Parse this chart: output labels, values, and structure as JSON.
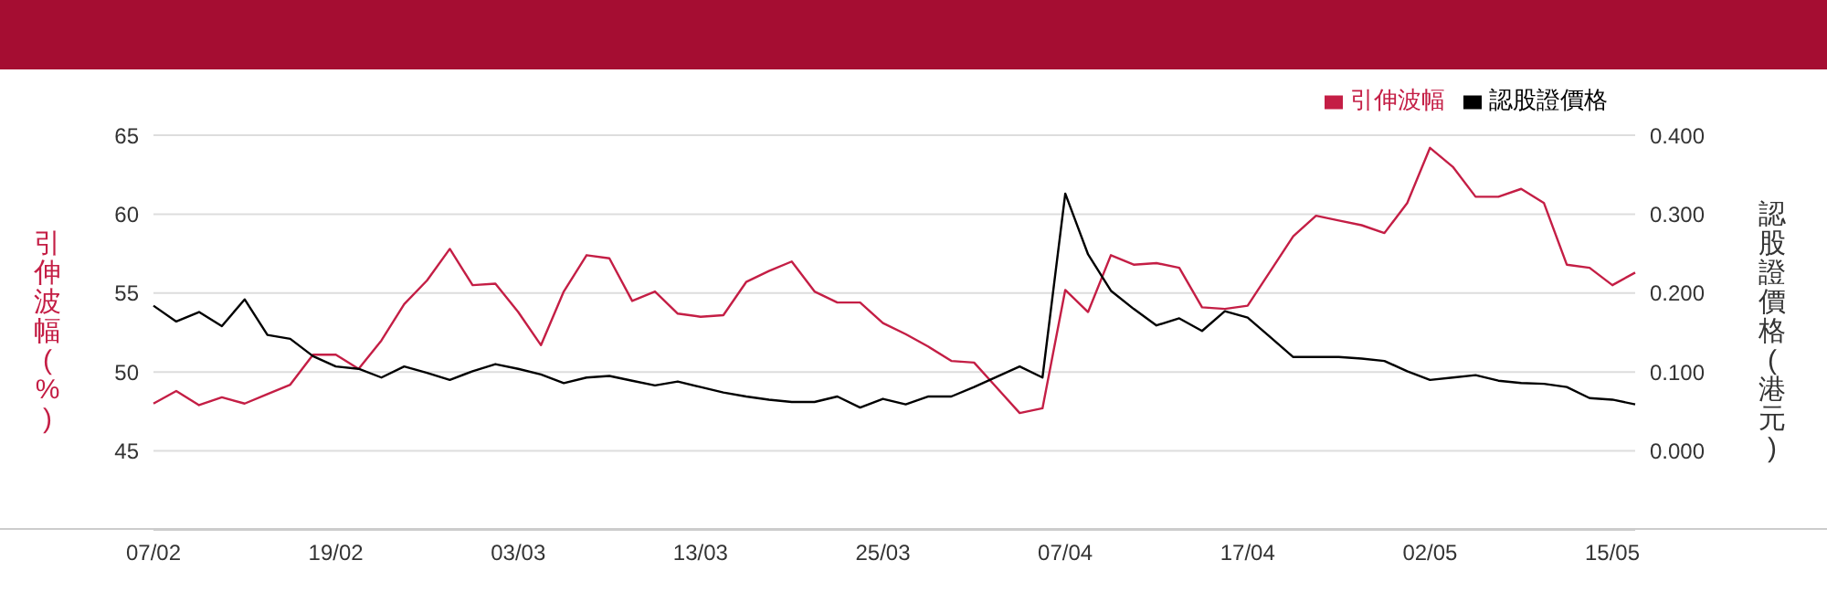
{
  "chart_data": {
    "type": "line",
    "ylabel": "引伸波幅(%)",
    "y2label": "認股證價格(港元)",
    "categories": [
      "07/02",
      null,
      null,
      null,
      null,
      null,
      null,
      null,
      "19/02",
      null,
      null,
      null,
      null,
      null,
      null,
      null,
      "03/03",
      null,
      null,
      null,
      null,
      null,
      null,
      null,
      "13/03",
      null,
      null,
      null,
      null,
      null,
      null,
      null,
      "25/03",
      null,
      null,
      null,
      null,
      null,
      null,
      null,
      "07/04",
      null,
      null,
      null,
      null,
      null,
      null,
      null,
      "17/04",
      null,
      null,
      null,
      null,
      null,
      null,
      null,
      "02/05",
      null,
      null,
      null,
      null,
      null,
      null,
      null,
      "15/05",
      null
    ],
    "series": [
      {
        "name": "引伸波幅",
        "color": "#c41e45",
        "values": [
          48.0,
          48.8,
          47.9,
          48.4,
          48.0,
          48.6,
          49.2,
          51.1,
          51.1,
          50.2,
          52.0,
          54.3,
          55.8,
          57.8,
          55.5,
          55.6,
          53.8,
          51.7,
          55.1,
          57.4,
          57.2,
          54.5,
          55.1,
          53.7,
          53.5,
          53.6,
          55.7,
          56.4,
          57.0,
          55.1,
          54.4,
          54.4,
          53.1,
          52.4,
          51.6,
          50.7,
          50.6,
          49.0,
          47.4,
          47.7,
          55.2,
          53.8,
          57.4,
          56.8,
          56.9,
          56.6,
          54.1,
          54.0,
          54.2,
          56.4,
          58.6,
          59.9,
          59.6,
          59.3,
          58.8,
          60.7,
          64.2,
          63.0,
          61.1,
          61.1,
          61.6,
          60.7,
          56.8,
          56.6,
          55.5,
          56.3
        ]
      },
      {
        "name": "認股證價格",
        "color": "#000000",
        "axis": "y2",
        "values": [
          0.184,
          0.164,
          0.176,
          0.158,
          0.192,
          0.147,
          0.142,
          0.12,
          0.107,
          0.104,
          0.093,
          0.107,
          0.099,
          0.09,
          0.101,
          0.11,
          0.104,
          0.097,
          0.086,
          0.093,
          0.095,
          0.089,
          0.083,
          0.088,
          0.081,
          0.074,
          0.069,
          0.065,
          0.062,
          0.062,
          0.069,
          0.055,
          0.066,
          0.059,
          0.069,
          0.069,
          0.081,
          0.094,
          0.107,
          0.093,
          0.326,
          0.249,
          0.203,
          0.18,
          0.159,
          0.168,
          0.152,
          0.177,
          0.169,
          0.144,
          0.119,
          0.119,
          0.119,
          0.117,
          0.114,
          0.101,
          0.09,
          0.093,
          0.096,
          0.089,
          0.086,
          0.085,
          0.081,
          0.067,
          0.065,
          0.059
        ]
      }
    ],
    "ylim": [
      40,
      65
    ],
    "yticks": [
      45,
      50,
      55,
      60,
      65
    ],
    "y2lim": [
      -0.1,
      0.4
    ],
    "y2ticks": [
      {
        "value": 0,
        "label": "0.000"
      },
      {
        "value": 0.1,
        "label": "0.100"
      },
      {
        "value": 0.2,
        "label": "0.200"
      },
      {
        "value": 0.3,
        "label": "0.300"
      },
      {
        "value": 0.4,
        "label": "0.400"
      }
    ],
    "grid": "y",
    "legend": "top right",
    "marker": "none",
    "line_style": "solid"
  }
}
